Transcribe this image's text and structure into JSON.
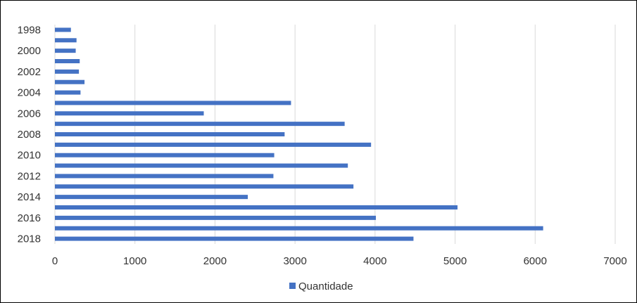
{
  "chart_data": {
    "type": "bar",
    "orientation": "horizontal",
    "categories": [
      "1998",
      "1999",
      "2000",
      "2001",
      "2002",
      "2003",
      "2004",
      "2005",
      "2006",
      "2007",
      "2008",
      "2009",
      "2010",
      "2011",
      "2012",
      "2013",
      "2014",
      "2015",
      "2016",
      "2017",
      "2018"
    ],
    "category_labels_shown": [
      "1998",
      "",
      "2000",
      "",
      "2002",
      "",
      "2004",
      "",
      "2006",
      "",
      "2008",
      "",
      "2010",
      "",
      "2012",
      "",
      "2014",
      "",
      "2016",
      "",
      "2018"
    ],
    "series": [
      {
        "name": "Quantidade",
        "color": "#4472C4",
        "values": [
          200,
          270,
          260,
          310,
          300,
          370,
          320,
          2950,
          1860,
          3620,
          2870,
          3950,
          2740,
          3660,
          2730,
          3730,
          2410,
          5030,
          4010,
          6100,
          4480
        ]
      }
    ],
    "xlim": [
      0,
      7000
    ],
    "x_ticks": [
      "0",
      "1000",
      "2000",
      "3000",
      "4000",
      "5000",
      "6000",
      "7000"
    ],
    "grid": "vertical",
    "legend": "bottom-center",
    "title": "",
    "xlabel": "",
    "ylabel": ""
  },
  "legend": {
    "label": "Quantidade"
  }
}
